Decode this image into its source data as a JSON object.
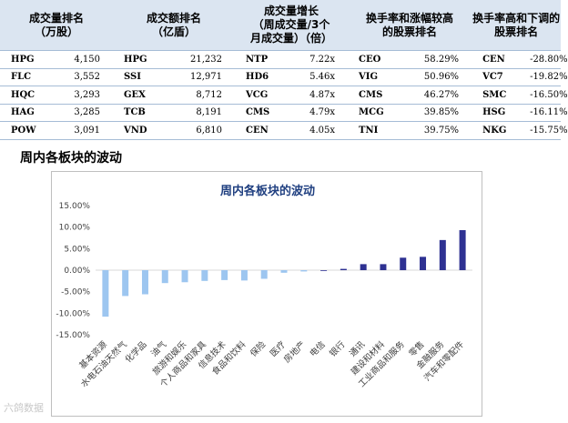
{
  "table": {
    "headers": [
      "成交量排名\n（万股）",
      "成交额排名\n（亿盾）",
      "成交量增长\n（周成交量/3个\n月成交量）（倍）",
      "换手率和涨幅较高\n的股票排名",
      "换手率高和下调的\n股票排名"
    ],
    "rows": [
      [
        "HPG",
        "4,150",
        "HPG",
        "21,232",
        "NTP",
        "7.22x",
        "CEO",
        "58.29%",
        "CEN",
        "-28.80%"
      ],
      [
        "FLC",
        "3,552",
        "SSI",
        "12,971",
        "HD6",
        "5.46x",
        "VIG",
        "50.96%",
        "VC7",
        "-19.82%"
      ],
      [
        "HQC",
        "3,293",
        "GEX",
        "8,712",
        "VCG",
        "4.87x",
        "CMS",
        "46.27%",
        "SMC",
        "-16.50%"
      ],
      [
        "HAG",
        "3,285",
        "TCB",
        "8,191",
        "CMS",
        "4.79x",
        "MCG",
        "39.85%",
        "HSG",
        "-16.11%"
      ],
      [
        "POW",
        "3,091",
        "VND",
        "6,810",
        "CEN",
        "4.05x",
        "TNI",
        "39.75%",
        "NKG",
        "-15.75%"
      ]
    ]
  },
  "section_title": "周内各板块的波动",
  "watermark": "六鸽数据",
  "colors": {
    "header_bg": "#dbe5f1",
    "negative_bar": "#9dc6f0",
    "positive_bar": "#2e3192",
    "title": "#1f3f80"
  },
  "chart_data": {
    "type": "bar",
    "title": "周内各板块的波动",
    "categories": [
      "基本资源",
      "水电石油天然气",
      "化学品",
      "油气",
      "旅游和娱乐",
      "个人商品和家具",
      "信息技术",
      "食品和饮料",
      "保险",
      "医疗",
      "房地产",
      "电信",
      "银行",
      "通讯",
      "建设和材料",
      "工业商品和服务",
      "零售",
      "金融服务",
      "汽车和零配件"
    ],
    "values": [
      -10.8,
      -6.0,
      -5.6,
      -3.0,
      -2.8,
      -2.5,
      -2.3,
      -2.4,
      -2.0,
      -0.6,
      -0.3,
      0.0,
      0.3,
      1.4,
      1.4,
      2.9,
      3.1,
      7.0,
      9.3
    ],
    "ylim": [
      -15,
      15
    ],
    "yticks": [
      "15.00%",
      "10.00%",
      "5.00%",
      "0.00%",
      "-5.00%",
      "-10.00%",
      "-15.00%"
    ],
    "grid": false,
    "legend": "none"
  }
}
